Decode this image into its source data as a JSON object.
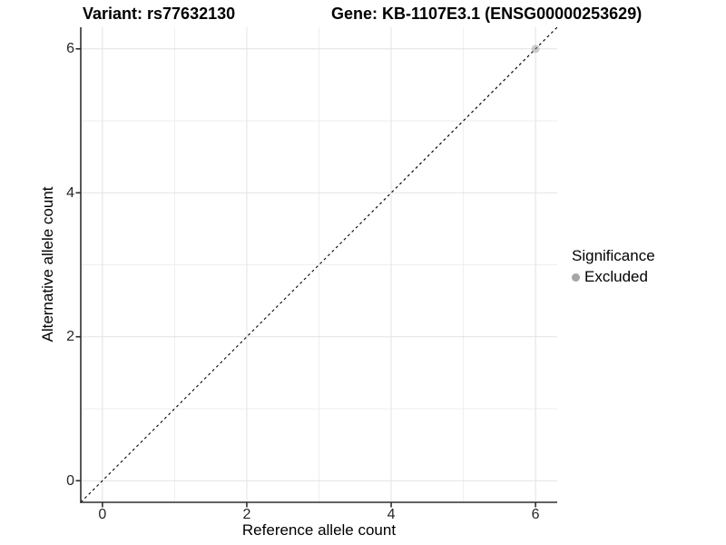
{
  "chart_data": {
    "type": "scatter",
    "titles": {
      "left": "Variant: rs77632130",
      "right": "Gene: KB-1107E3.1 (ENSG00000253629)"
    },
    "xlabel": "Reference allele count",
    "ylabel": "Alternative allele count",
    "xlim": [
      -0.3,
      6.3
    ],
    "ylim": [
      -0.3,
      6.3
    ],
    "major_ticks": [
      0,
      2,
      4,
      6
    ],
    "minor_gridlines": [
      1,
      3,
      5
    ],
    "grid": "on",
    "identity_line": {
      "slope": 1,
      "intercept": 0,
      "style": "dashed",
      "color": "#000000"
    },
    "series": [
      {
        "name": "Excluded",
        "color": "#9e9e9e",
        "opacity": 0.5,
        "points": [
          [
            6,
            6
          ]
        ]
      }
    ],
    "legend": {
      "title": "Significance",
      "position": "right",
      "items": [
        {
          "label": "Excluded",
          "color": "#a6a6a6"
        }
      ]
    },
    "colors": {
      "grid_major": "#e2e2e2",
      "grid_minor": "#eeeeee",
      "axis": "#2e2e2e",
      "tick_label": "#262626",
      "title_text": "#000000"
    }
  }
}
